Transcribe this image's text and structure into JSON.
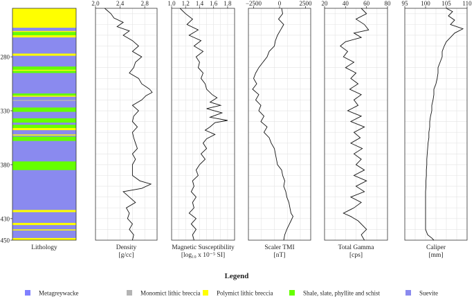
{
  "chart_data": {
    "type": "line",
    "depth_axis": {
      "min": 235,
      "max": 450,
      "ticks": [
        280,
        330,
        380,
        430,
        450
      ],
      "reversed": true
    },
    "lithology_panel": {
      "title": "Lithology",
      "base_unit": "Suevite",
      "intervals": [
        {
          "top": 235,
          "bottom": 253,
          "unit": "Polymict lithic breccia"
        },
        {
          "top": 256,
          "bottom": 257,
          "unit": "Polymict lithic breccia"
        },
        {
          "top": 257,
          "bottom": 260,
          "unit": "Shale, slate, phyllite and schist"
        },
        {
          "top": 260,
          "bottom": 262,
          "unit": "Polymict lithic breccia"
        },
        {
          "top": 277,
          "bottom": 279,
          "unit": "Polymict lithic breccia"
        },
        {
          "top": 289,
          "bottom": 292,
          "unit": "Shale, slate, phyllite and schist"
        },
        {
          "top": 292,
          "bottom": 293,
          "unit": "Polymict lithic breccia"
        },
        {
          "top": 293,
          "bottom": 295,
          "unit": "Shale, slate, phyllite and schist"
        },
        {
          "top": 314,
          "bottom": 316,
          "unit": "Shale, slate, phyllite and schist"
        },
        {
          "top": 316,
          "bottom": 317,
          "unit": "Polymict lithic breccia"
        },
        {
          "top": 320,
          "bottom": 321,
          "unit": "Monomict lithic breccia"
        },
        {
          "top": 327,
          "bottom": 331,
          "unit": "Shale, slate, phyllite and schist"
        },
        {
          "top": 337,
          "bottom": 341,
          "unit": "Shale, slate, phyllite and schist"
        },
        {
          "top": 343,
          "bottom": 346,
          "unit": "Shale, slate, phyllite and schist"
        },
        {
          "top": 346,
          "bottom": 348,
          "unit": "Polymict lithic breccia"
        },
        {
          "top": 352,
          "bottom": 353,
          "unit": "Polymict lithic breccia"
        },
        {
          "top": 354,
          "bottom": 358,
          "unit": "Shale, slate, phyllite and schist"
        },
        {
          "top": 377,
          "bottom": 385,
          "unit": "Shale, slate, phyllite and schist"
        },
        {
          "top": 422,
          "bottom": 424,
          "unit": "Polymict lithic breccia"
        },
        {
          "top": 434,
          "bottom": 436,
          "unit": "Polymict lithic breccia"
        },
        {
          "top": 440,
          "bottom": 441,
          "unit": "Polymict lithic breccia"
        },
        {
          "top": 448,
          "bottom": 450,
          "unit": "Polymict lithic breccia"
        }
      ]
    },
    "tracks": [
      {
        "name": "Density",
        "unit": "[g/cc]",
        "xlim": [
          2.0,
          3.0
        ],
        "ticks": [
          "2.0",
          "2.4",
          "2.8"
        ],
        "tick_values": [
          2.0,
          2.4,
          2.8
        ],
        "points": [
          [
            235,
            2.15
          ],
          [
            240,
            2.25
          ],
          [
            244,
            2.3
          ],
          [
            248,
            2.45
          ],
          [
            252,
            2.35
          ],
          [
            256,
            2.55
          ],
          [
            260,
            2.45
          ],
          [
            265,
            2.6
          ],
          [
            270,
            2.7
          ],
          [
            275,
            2.6
          ],
          [
            280,
            2.75
          ],
          [
            285,
            2.65
          ],
          [
            290,
            2.62
          ],
          [
            295,
            2.55
          ],
          [
            300,
            2.7
          ],
          [
            305,
            2.75
          ],
          [
            310,
            2.88
          ],
          [
            313,
            2.92
          ],
          [
            316,
            2.82
          ],
          [
            320,
            2.75
          ],
          [
            325,
            2.6
          ],
          [
            330,
            2.7
          ],
          [
            335,
            2.62
          ],
          [
            340,
            2.6
          ],
          [
            345,
            2.68
          ],
          [
            350,
            2.6
          ],
          [
            355,
            2.62
          ],
          [
            360,
            2.65
          ],
          [
            365,
            2.68
          ],
          [
            370,
            2.6
          ],
          [
            375,
            2.65
          ],
          [
            380,
            2.6
          ],
          [
            385,
            2.6
          ],
          [
            390,
            2.6
          ],
          [
            395,
            2.72
          ],
          [
            398,
            2.9
          ],
          [
            402,
            2.75
          ],
          [
            405,
            2.45
          ],
          [
            410,
            2.55
          ],
          [
            415,
            2.65
          ],
          [
            420,
            2.5
          ],
          [
            425,
            2.55
          ],
          [
            430,
            2.52
          ],
          [
            435,
            2.6
          ],
          [
            440,
            2.55
          ],
          [
            445,
            2.62
          ],
          [
            450,
            2.6
          ]
        ]
      },
      {
        "name": "Magnetic Susceptibility",
        "unit": "[log₁₀ x 10⁻⁵ SI]",
        "xlim": [
          1.0,
          1.9
        ],
        "ticks": [
          "1.0",
          "1.2",
          "1.4",
          "1.6",
          "1.8"
        ],
        "tick_values": [
          1.0,
          1.2,
          1.4,
          1.6,
          1.8
        ],
        "points": [
          [
            235,
            1.12
          ],
          [
            240,
            1.2
          ],
          [
            245,
            1.3
          ],
          [
            250,
            1.22
          ],
          [
            255,
            1.38
          ],
          [
            260,
            1.25
          ],
          [
            265,
            1.42
          ],
          [
            270,
            1.32
          ],
          [
            275,
            1.45
          ],
          [
            280,
            1.35
          ],
          [
            285,
            1.4
          ],
          [
            290,
            1.38
          ],
          [
            295,
            1.45
          ],
          [
            300,
            1.42
          ],
          [
            305,
            1.48
          ],
          [
            310,
            1.5
          ],
          [
            315,
            1.58
          ],
          [
            318,
            1.65
          ],
          [
            322,
            1.55
          ],
          [
            325,
            1.7
          ],
          [
            328,
            1.5
          ],
          [
            332,
            1.72
          ],
          [
            336,
            1.55
          ],
          [
            339,
            1.8
          ],
          [
            341,
            1.62
          ],
          [
            345,
            1.55
          ],
          [
            348,
            1.48
          ],
          [
            352,
            1.62
          ],
          [
            356,
            1.5
          ],
          [
            360,
            1.45
          ],
          [
            365,
            1.5
          ],
          [
            370,
            1.42
          ],
          [
            375,
            1.48
          ],
          [
            380,
            1.4
          ],
          [
            385,
            1.35
          ],
          [
            390,
            1.38
          ],
          [
            395,
            1.3
          ],
          [
            400,
            1.32
          ],
          [
            405,
            1.28
          ],
          [
            410,
            1.35
          ],
          [
            415,
            1.3
          ],
          [
            420,
            1.32
          ],
          [
            425,
            1.25
          ],
          [
            430,
            1.35
          ],
          [
            435,
            1.28
          ],
          [
            440,
            1.35
          ],
          [
            445,
            1.3
          ],
          [
            450,
            1.32
          ]
        ]
      },
      {
        "name": "Scaler TMI",
        "unit": "[nT]",
        "xlim": [
          -3000,
          3000
        ],
        "ticks": [
          "−2500",
          "0",
          "2500"
        ],
        "tick_values": [
          -2500,
          0,
          2500
        ],
        "points": [
          [
            235,
            200
          ],
          [
            240,
            300
          ],
          [
            245,
            -100
          ],
          [
            250,
            400
          ],
          [
            255,
            100
          ],
          [
            260,
            -200
          ],
          [
            265,
            -400
          ],
          [
            270,
            -500
          ],
          [
            275,
            -1000
          ],
          [
            280,
            -1200
          ],
          [
            285,
            -1600
          ],
          [
            290,
            -2000
          ],
          [
            295,
            -2300
          ],
          [
            300,
            -2500
          ],
          [
            305,
            -2200
          ],
          [
            310,
            -2600
          ],
          [
            315,
            -2000
          ],
          [
            320,
            -2300
          ],
          [
            325,
            -1800
          ],
          [
            330,
            -2000
          ],
          [
            335,
            -1500
          ],
          [
            340,
            -1800
          ],
          [
            345,
            -1200
          ],
          [
            350,
            -1500
          ],
          [
            355,
            -1000
          ],
          [
            360,
            -800
          ],
          [
            365,
            -500
          ],
          [
            370,
            -400
          ],
          [
            375,
            -300
          ],
          [
            380,
            -200
          ],
          [
            385,
            200
          ],
          [
            390,
            300
          ],
          [
            395,
            500
          ],
          [
            400,
            400
          ],
          [
            405,
            600
          ],
          [
            410,
            700
          ],
          [
            415,
            900
          ],
          [
            420,
            1000
          ],
          [
            425,
            1100
          ],
          [
            428,
            1300
          ],
          [
            432,
            1100
          ],
          [
            436,
            900
          ],
          [
            440,
            700
          ],
          [
            445,
            500
          ],
          [
            450,
            400
          ]
        ]
      },
      {
        "name": "Total Gamma",
        "unit": "[cps]",
        "xlim": [
          20,
          80
        ],
        "ticks": [
          "20",
          "40",
          "60",
          "80"
        ],
        "tick_values": [
          20,
          40,
          60,
          80
        ],
        "points": [
          [
            235,
            55
          ],
          [
            240,
            60
          ],
          [
            245,
            50
          ],
          [
            250,
            58
          ],
          [
            255,
            62
          ],
          [
            258,
            48
          ],
          [
            262,
            55
          ],
          [
            266,
            40
          ],
          [
            270,
            35
          ],
          [
            275,
            42
          ],
          [
            280,
            38
          ],
          [
            285,
            48
          ],
          [
            290,
            40
          ],
          [
            295,
            50
          ],
          [
            300,
            45
          ],
          [
            305,
            52
          ],
          [
            310,
            44
          ],
          [
            315,
            55
          ],
          [
            320,
            48
          ],
          [
            325,
            52
          ],
          [
            330,
            42
          ],
          [
            335,
            55
          ],
          [
            340,
            45
          ],
          [
            345,
            58
          ],
          [
            350,
            48
          ],
          [
            355,
            54
          ],
          [
            360,
            45
          ],
          [
            365,
            56
          ],
          [
            370,
            48
          ],
          [
            375,
            55
          ],
          [
            380,
            50
          ],
          [
            385,
            58
          ],
          [
            390,
            48
          ],
          [
            395,
            60
          ],
          [
            400,
            50
          ],
          [
            405,
            58
          ],
          [
            410,
            45
          ],
          [
            415,
            55
          ],
          [
            420,
            48
          ],
          [
            425,
            38
          ],
          [
            428,
            45
          ],
          [
            432,
            52
          ],
          [
            436,
            56
          ],
          [
            440,
            60
          ],
          [
            445,
            55
          ],
          [
            450,
            58
          ]
        ]
      },
      {
        "name": "Caliper",
        "unit": "[mm]",
        "xlim": [
          95,
          110
        ],
        "ticks": [
          "95",
          "100",
          "105",
          "110"
        ],
        "tick_values": [
          95,
          100,
          105,
          110
        ],
        "points": [
          [
            235,
            105
          ],
          [
            238,
            106.5
          ],
          [
            242,
            105.5
          ],
          [
            246,
            107
          ],
          [
            250,
            106
          ],
          [
            254,
            109
          ],
          [
            258,
            107
          ],
          [
            262,
            106
          ],
          [
            266,
            105
          ],
          [
            270,
            104.5
          ],
          [
            275,
            104
          ],
          [
            280,
            104
          ],
          [
            285,
            103.5
          ],
          [
            290,
            103
          ],
          [
            295,
            103
          ],
          [
            300,
            102.8
          ],
          [
            305,
            102.5
          ],
          [
            310,
            102
          ],
          [
            315,
            102
          ],
          [
            320,
            101.8
          ],
          [
            325,
            101.5
          ],
          [
            330,
            101.5
          ],
          [
            335,
            101.2
          ],
          [
            340,
            101
          ],
          [
            345,
            101
          ],
          [
            350,
            100.8
          ],
          [
            355,
            100.8
          ],
          [
            360,
            100.6
          ],
          [
            365,
            100.5
          ],
          [
            370,
            100.4
          ],
          [
            375,
            100.3
          ],
          [
            380,
            100.3
          ],
          [
            385,
            100.2
          ],
          [
            390,
            100.2
          ],
          [
            395,
            100.1
          ],
          [
            400,
            100.1
          ],
          [
            405,
            100
          ],
          [
            410,
            100
          ],
          [
            415,
            100
          ],
          [
            420,
            100
          ],
          [
            425,
            100
          ],
          [
            430,
            100
          ],
          [
            435,
            100
          ],
          [
            440,
            100
          ],
          [
            445,
            100.5
          ],
          [
            448,
            101.5
          ],
          [
            450,
            102
          ]
        ]
      }
    ]
  },
  "legend": {
    "title": "Legend",
    "items": [
      {
        "label": "Metagreywacke",
        "color": "#8080ff"
      },
      {
        "label": "Monomict lithic breccia",
        "color": "#b4b4b4"
      },
      {
        "label": "Polymict lithic breccia",
        "color": "#ffff00"
      },
      {
        "label": "Shale, slate, phyllite and schist",
        "color": "#66ff00"
      },
      {
        "label": "Suevite",
        "color": "#8a8aef"
      }
    ]
  }
}
